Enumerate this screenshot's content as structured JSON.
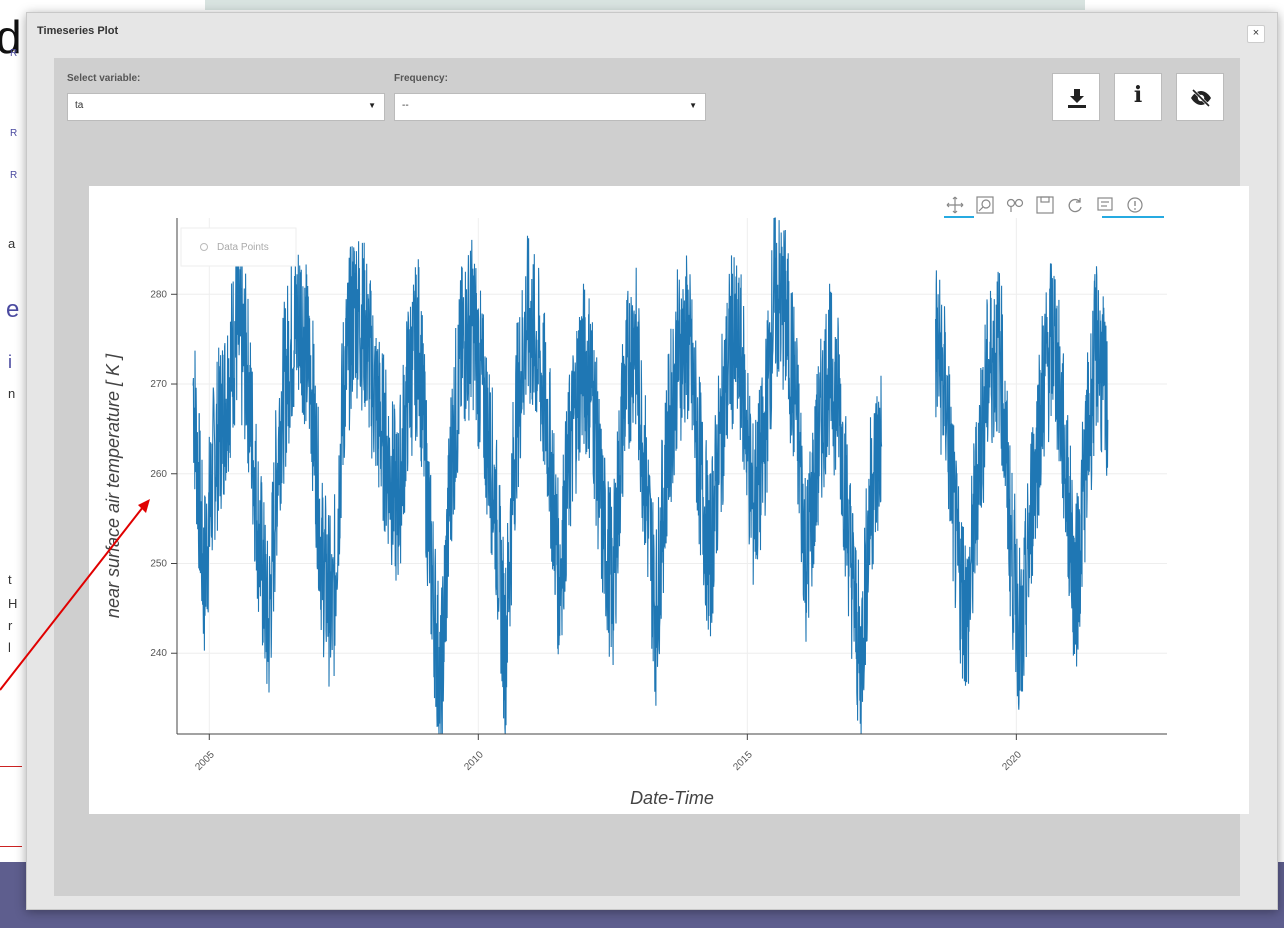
{
  "background_fragments": {
    "big_letter": "d",
    "letters": [
      "R",
      "R",
      "R",
      "a",
      "e",
      "i",
      "n",
      "t",
      "H",
      "r",
      "l"
    ]
  },
  "modal": {
    "title": "Timeseries Plot",
    "close_label": "×",
    "select_variable": {
      "label": "Select variable:",
      "value": "ta"
    },
    "frequency": {
      "label": "Frequency:",
      "value": "--"
    },
    "buttons": {
      "download_icon": "download-icon",
      "info_icon": "info-icon",
      "hide_icon": "eye-slash-icon",
      "info_glyph": "i"
    }
  },
  "plot_toolbar": [
    "pan-icon",
    "box-zoom-icon",
    "wheel-zoom-icon",
    "save-icon",
    "reset-icon",
    "hover-icon",
    "help-icon"
  ],
  "colors": {
    "line": "#1f77b4",
    "footer": "#5e5e8e",
    "annotation_arrow": "#e00000"
  },
  "chart_data": {
    "type": "line",
    "title": "",
    "xlabel": "Date-Time",
    "ylabel": "near surface air temperature [ K ]",
    "legend": {
      "entries": [
        "Data Points"
      ],
      "placement": "top-left"
    },
    "xlim": [
      2004.4,
      2022.8
    ],
    "ylim": [
      231,
      288.5
    ],
    "x_ticks": [
      "2005",
      "2010",
      "2015",
      "2020"
    ],
    "y_ticks": [
      "240",
      "250",
      "260",
      "270",
      "280"
    ],
    "grid": true,
    "gap": [
      2017.7,
      2018.4
    ],
    "series": [
      {
        "name": "Data Points",
        "x": [
          2004.7,
          2004.9,
          2005.1,
          2005.3,
          2005.5,
          2005.7,
          2005.9,
          2006.1,
          2006.3,
          2006.5,
          2006.7,
          2006.9,
          2007.1,
          2007.3,
          2007.5,
          2007.7,
          2007.9,
          2008.1,
          2008.3,
          2008.5,
          2008.7,
          2008.9,
          2009.1,
          2009.3,
          2009.5,
          2009.7,
          2009.9,
          2010.1,
          2010.3,
          2010.5,
          2010.7,
          2010.9,
          2011.1,
          2011.3,
          2011.5,
          2011.7,
          2011.9,
          2012.1,
          2012.3,
          2012.5,
          2012.7,
          2012.9,
          2013.1,
          2013.3,
          2013.5,
          2013.7,
          2013.9,
          2014.1,
          2014.3,
          2014.5,
          2014.7,
          2014.9,
          2015.1,
          2015.3,
          2015.5,
          2015.7,
          2015.9,
          2016.1,
          2016.3,
          2016.5,
          2016.7,
          2016.9,
          2017.1,
          2017.3,
          2017.5,
          2018.5,
          2018.7,
          2018.9,
          2019.1,
          2019.3,
          2019.5,
          2019.7,
          2019.9,
          2020.1,
          2020.3,
          2020.5,
          2020.7,
          2020.9,
          2021.1,
          2021.3,
          2021.5,
          2021.7
        ],
        "y": [
          270,
          248,
          262,
          268,
          276,
          272,
          255,
          242,
          265,
          274,
          278,
          270,
          250,
          244,
          270,
          279,
          276,
          268,
          262,
          256,
          270,
          275,
          252,
          235,
          262,
          274,
          277,
          268,
          258,
          240,
          266,
          277,
          274,
          265,
          248,
          262,
          272,
          271,
          255,
          247,
          268,
          276,
          260,
          244,
          262,
          273,
          275,
          262,
          250,
          264,
          275,
          272,
          256,
          262,
          280,
          278,
          268,
          250,
          262,
          272,
          268,
          252,
          238,
          258,
          264,
          275,
          268,
          250,
          244,
          262,
          272,
          274,
          252,
          240,
          258,
          270,
          276,
          262,
          246,
          262,
          275,
          266
        ]
      }
    ]
  }
}
